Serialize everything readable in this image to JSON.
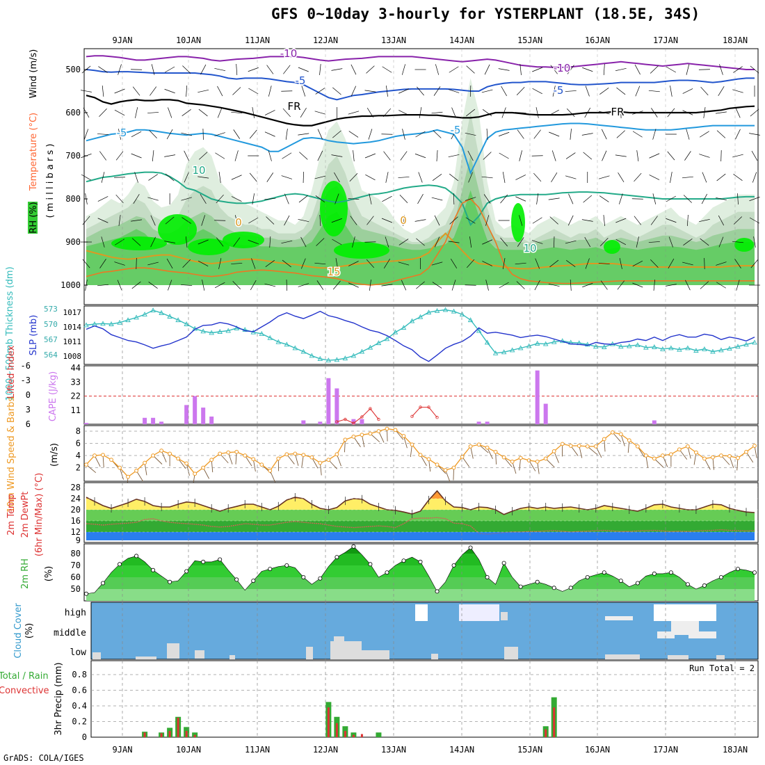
{
  "title": "GFS 0~10day 3-hourly for YSTERPLANT (18.5E, 34S)",
  "credit": "GrADS: COLA/IGES",
  "days": [
    "9JAN",
    "10JAN",
    "11JAN",
    "12JAN",
    "13JAN",
    "14JAN",
    "15JAN",
    "16JAN",
    "17JAN",
    "18JAN"
  ],
  "colors": {
    "rh_green": "#33cc33",
    "bright_green": "#00ee00",
    "cape": "#cc77ee",
    "slp": "#2233cc",
    "thickness": "#33bbbb",
    "wind": "#ee9922",
    "temp_fill": "#339933",
    "dew": "#2266dd",
    "cloud": "#66aadd",
    "precip_total": "#33aa33",
    "precip_conv": "#dd3333",
    "lifted": "#dd3333"
  },
  "panels": {
    "upper": {
      "ylabel_rh": "RH (%)",
      "ylabel_temp": "Temperature (°C)",
      "ylabel_wind": "Wind (m/s)",
      "ylabel_p": "( m i l l i b a r s )",
      "yticks": [
        "500",
        "600",
        "700",
        "800",
        "900",
        "1000"
      ],
      "contour_labels": [
        {
          "text": "-10",
          "color": "#8822aa"
        },
        {
          "text": "-10",
          "color": "#8822aa"
        },
        {
          "text": "-5",
          "color": "#2255cc"
        },
        {
          "text": "-5",
          "color": "#2255cc"
        },
        {
          "text": "-5",
          "color": "#2299dd"
        },
        {
          "text": "-5",
          "color": "#2299dd"
        },
        {
          "text": "FR",
          "color": "#000000"
        },
        {
          "text": "FR",
          "color": "#000000"
        },
        {
          "text": "10",
          "color": "#22aa88"
        },
        {
          "text": "10",
          "color": "#22aa88"
        },
        {
          "text": "0",
          "color": "#dd9922"
        },
        {
          "text": "0",
          "color": "#dd9922"
        },
        {
          "text": "15",
          "color": "#dd9922"
        }
      ]
    },
    "slp": {
      "ylabel_thick": "1000~500mb Thickness (dm)",
      "ylabel_slp": "SLP (mb)",
      "yticks_thick": [
        "573",
        "570",
        "567",
        "564"
      ],
      "yticks_slp": [
        "1017",
        "1014",
        "1011",
        "1008"
      ],
      "slp_values": [
        1013.5,
        1014.2,
        1013.6,
        1012.4,
        1011.8,
        1011.2,
        1010.9,
        1010.3,
        1009.6,
        1010.1,
        1010.5,
        1011.2,
        1011.9,
        1013.5,
        1014.3,
        1014.4,
        1014.9,
        1014.6,
        1014.0,
        1013.2,
        1013.0,
        1014.0,
        1015.0,
        1016.2,
        1016.9,
        1016.2,
        1015.7,
        1016.4,
        1017.2,
        1016.3,
        1015.9,
        1015.3,
        1014.8,
        1014.0,
        1013.3,
        1012.9,
        1012.2,
        1011.2,
        1010.1,
        1009.3,
        1007.8,
        1006.9,
        1008.2,
        1009.6,
        1010.4,
        1011.0,
        1012.1,
        1013.8,
        1012.7,
        1012.9,
        1012.6,
        1012.3,
        1011.8,
        1012.1,
        1012.3,
        1012.0,
        1011.5,
        1011.0,
        1010.5,
        1010.4,
        1010.2,
        1010.8,
        1010.5,
        1010.4,
        1010.8,
        1011.0,
        1011.5,
        1011.2,
        1011.9,
        1011.2,
        1012.0,
        1012.4,
        1011.9,
        1011.9,
        1012.5,
        1012.2,
        1011.4,
        1011.9,
        1011.6,
        1011.1,
        1011.9
      ],
      "thick_values": [
        569.8,
        570.0,
        570.1,
        570.0,
        570.3,
        570.8,
        571.3,
        571.9,
        572.7,
        572.2,
        571.5,
        570.8,
        570.0,
        569.1,
        568.6,
        568.3,
        568.5,
        568.7,
        569.2,
        568.9,
        568.4,
        568.1,
        567.3,
        566.5,
        566.0,
        565.3,
        564.6,
        563.8,
        563.2,
        562.9,
        563.0,
        563.3,
        563.8,
        564.6,
        565.4,
        566.3,
        567.1,
        568.4,
        569.3,
        570.6,
        571.4,
        572.3,
        572.6,
        572.8,
        572.5,
        571.9,
        570.8,
        568.7,
        566.4,
        564.3,
        564.5,
        564.9,
        565.3,
        565.7,
        566.2,
        566.1,
        566.5,
        566.7,
        566.4,
        566.3,
        566.0,
        565.6,
        565.5,
        566.1,
        565.6,
        565.7,
        565.9,
        565.4,
        565.5,
        565.1,
        565.3,
        565.0,
        565.3,
        564.8,
        565.1,
        564.6,
        564.9,
        565.2,
        565.6,
        566.0,
        566.4
      ]
    },
    "cape": {
      "ylabel_li": "Lifted Index",
      "ylabel_cape": "CAPE (J/kg)",
      "yticks_li": [
        "-6",
        "-3",
        "0",
        "3",
        "6"
      ],
      "yticks_cape": [
        "44",
        "33",
        "22",
        "11"
      ],
      "cape_values": [
        1,
        0,
        0,
        0,
        0,
        0,
        0,
        5,
        5,
        2,
        0,
        0,
        15,
        22,
        13,
        6,
        0,
        0,
        0,
        0,
        0,
        0,
        0,
        0,
        0,
        0,
        3,
        0,
        2,
        36,
        28,
        0,
        4,
        4,
        0,
        0,
        0,
        0,
        0,
        0,
        0,
        0,
        0,
        0,
        0,
        0,
        0,
        2,
        2,
        0,
        0,
        0,
        0,
        0,
        42,
        16,
        0,
        0,
        0,
        0,
        0,
        0,
        0,
        0,
        0,
        0,
        0,
        0,
        3,
        0,
        0,
        0,
        0,
        0,
        0,
        0,
        0,
        0,
        0,
        0,
        0
      ],
      "lifted_values": [
        6,
        6,
        6,
        6,
        6,
        6,
        6,
        6,
        6,
        6,
        6,
        6,
        6,
        6,
        6,
        6,
        6,
        6,
        6,
        6,
        6,
        6,
        6,
        6,
        6,
        6,
        6,
        6,
        6,
        6,
        5.5,
        5.0,
        5.8,
        4.5,
        2.8,
        5.0,
        6,
        6,
        6,
        4.4,
        2.5,
        2.5,
        4.6,
        6,
        6,
        6,
        6,
        6,
        6,
        6,
        6,
        6,
        6,
        6,
        6,
        6,
        6,
        6,
        6,
        6,
        6,
        6,
        6,
        6,
        6,
        6,
        6,
        6,
        6,
        6,
        6,
        6,
        6,
        6,
        6,
        6,
        6,
        6,
        6,
        6,
        6
      ]
    },
    "wind": {
      "ylabel": "10m Wind Speed & Barbs",
      "ylabel_units": "(m/s)",
      "yticks": [
        "8",
        "6",
        "4",
        "2"
      ],
      "speed_values": [
        2.5,
        4.0,
        4.1,
        3.3,
        2.0,
        0.5,
        1.5,
        2.8,
        4.0,
        4.8,
        4.3,
        3.5,
        2.7,
        1.0,
        2.0,
        3.3,
        4.3,
        4.5,
        4.6,
        4.0,
        3.4,
        2.5,
        1.5,
        3.5,
        4.2,
        4.3,
        4.1,
        3.7,
        2.8,
        3.3,
        4.2,
        6.6,
        7.1,
        7.4,
        7.6,
        8.0,
        8.4,
        8.2,
        7.2,
        5.8,
        4.1,
        3.4,
        2.5,
        1.6,
        2.0,
        3.8,
        5.5,
        5.8,
        5.3,
        4.6,
        3.7,
        3.0,
        3.6,
        3.2,
        3.0,
        3.5,
        4.7,
        5.9,
        5.6,
        5.6,
        5.5,
        5.5,
        6.7,
        7.8,
        7.5,
        6.5,
        5.5,
        4.0,
        3.5,
        4.0,
        4.2,
        5.0,
        5.5,
        4.5,
        3.5,
        3.7,
        4.0,
        3.9,
        3.6,
        4.6,
        5.6
      ]
    },
    "temp": {
      "ylabel_1": "2m Temp",
      "ylabel_2": "2m DewPt",
      "ylabel_3": "(6hr Min/Max) (°C)",
      "yticks": [
        "28",
        "24",
        "20",
        "16",
        "12",
        "9"
      ],
      "temp_values": [
        24.5,
        23.0,
        21.5,
        20.5,
        21.5,
        22.5,
        23.8,
        23.0,
        21.5,
        21.0,
        21.0,
        22.0,
        22.8,
        22.5,
        21.5,
        20.5,
        19.5,
        20.5,
        21.2,
        22.0,
        22.0,
        21.0,
        20.0,
        21.3,
        23.5,
        24.5,
        24.0,
        22.0,
        20.5,
        20.0,
        20.8,
        23.2,
        24.0,
        23.8,
        22.0,
        21.0,
        20.0,
        19.8,
        19.2,
        18.5,
        19.5,
        23.5,
        26.8,
        23.2,
        21.0,
        20.8,
        20.0,
        21.0,
        20.8,
        20.0,
        18.3,
        19.5,
        20.5,
        21.0,
        20.5,
        21.0,
        20.5,
        20.8,
        21.0,
        20.5,
        20.0,
        20.5,
        21.5,
        21.0,
        20.5,
        20.0,
        19.5,
        20.5,
        21.8,
        22.0,
        21.0,
        20.5,
        20.0,
        20.0,
        21.0,
        22.0,
        21.8,
        20.5,
        19.8,
        19.2,
        19.0
      ],
      "dew_values": [
        15.0,
        14.8,
        14.5,
        14.8,
        15.0,
        15.2,
        15.5,
        16.5,
        16.8,
        16.0,
        15.5,
        15.2,
        15.0,
        14.8,
        14.5,
        14.0,
        13.8,
        14.0,
        14.5,
        15.0,
        14.8,
        14.5,
        14.5,
        15.0,
        15.5,
        15.8,
        15.5,
        15.2,
        15.0,
        14.5,
        14.0,
        13.8,
        13.6,
        13.8,
        14.0,
        14.2,
        14.0,
        13.6,
        15.0,
        16.8,
        17.0,
        17.0,
        17.2,
        16.8,
        15.2,
        15.0,
        14.2,
        11.5,
        11.2,
        11.5,
        11.8,
        12.0,
        12.0,
        12.2,
        12.2,
        12.4,
        12.5,
        12.3,
        12.0,
        12.2,
        12.3,
        12.5,
        12.6,
        12.4,
        12.2,
        12.2,
        12.4,
        12.5,
        12.6,
        12.4,
        12.2,
        12.3,
        12.2,
        12.4,
        12.5,
        12.6,
        12.8,
        12.6,
        12.5,
        12.4,
        12.5
      ]
    },
    "rh": {
      "ylabel": "2m RH",
      "ylabel_units": "(%)",
      "yticks": [
        "80",
        "70",
        "60",
        "50"
      ],
      "rh_values": [
        46,
        47,
        55,
        64,
        71,
        76,
        78,
        73,
        66,
        61,
        56,
        57,
        65,
        74,
        73,
        73,
        75,
        66,
        58,
        49,
        57,
        65,
        67,
        69,
        70,
        68,
        60,
        54,
        59,
        69,
        77,
        81,
        86,
        79,
        71,
        60,
        64,
        70,
        74,
        77,
        73,
        61,
        48,
        56,
        70,
        79,
        85,
        75,
        60,
        54,
        72,
        60,
        52,
        54,
        56,
        54,
        51,
        48,
        51,
        57,
        60,
        62,
        64,
        61,
        57,
        52,
        55,
        61,
        63,
        63,
        64,
        60,
        54,
        50,
        53,
        57,
        60,
        64,
        67,
        66,
        64
      ]
    },
    "cloud": {
      "ylabel": "Cloud Cover",
      "ylabel_units": "(%)",
      "levels": [
        "high",
        "middle",
        "low"
      ]
    },
    "precip": {
      "ylabel_a": "3hr Precip (mm)",
      "ylabel_total": "Total / Rain",
      "ylabel_conv": "Convective",
      "yticks": [
        "0.8",
        "0.6",
        "0.4",
        "0.2",
        "0"
      ],
      "run_total": "Run Total = 2",
      "total_values": [
        0,
        0,
        0,
        0,
        0,
        0,
        0,
        0.07,
        0,
        0.06,
        0.12,
        0.26,
        0.13,
        0.06,
        0,
        0,
        0,
        0,
        0,
        0,
        0,
        0,
        0,
        0,
        0,
        0,
        0,
        0,
        0,
        0.45,
        0.26,
        0.14,
        0.06,
        0,
        0,
        0.06,
        0,
        0,
        0,
        0,
        0,
        0,
        0,
        0,
        0,
        0,
        0,
        0,
        0,
        0,
        0,
        0,
        0,
        0,
        0,
        0.14,
        0.51,
        0,
        0,
        0,
        0,
        0,
        0,
        0,
        0,
        0,
        0,
        0,
        0,
        0,
        0,
        0,
        0,
        0,
        0,
        0,
        0,
        0,
        0,
        0,
        0
      ],
      "conv_values": [
        0,
        0,
        0,
        0,
        0,
        0,
        0,
        0.06,
        0,
        0.05,
        0.08,
        0.25,
        0.08,
        0.03,
        0,
        0,
        0,
        0,
        0,
        0,
        0,
        0,
        0,
        0,
        0,
        0,
        0,
        0,
        0,
        0.38,
        0.18,
        0.08,
        0.03,
        0.04,
        0,
        0,
        0,
        0,
        0,
        0,
        0,
        0,
        0,
        0,
        0,
        0,
        0,
        0,
        0,
        0,
        0,
        0,
        0,
        0,
        0,
        0.1,
        0.38,
        0,
        0,
        0,
        0,
        0,
        0,
        0,
        0,
        0,
        0,
        0,
        0,
        0,
        0,
        0,
        0,
        0,
        0,
        0,
        0,
        0,
        0,
        0,
        0
      ]
    }
  }
}
